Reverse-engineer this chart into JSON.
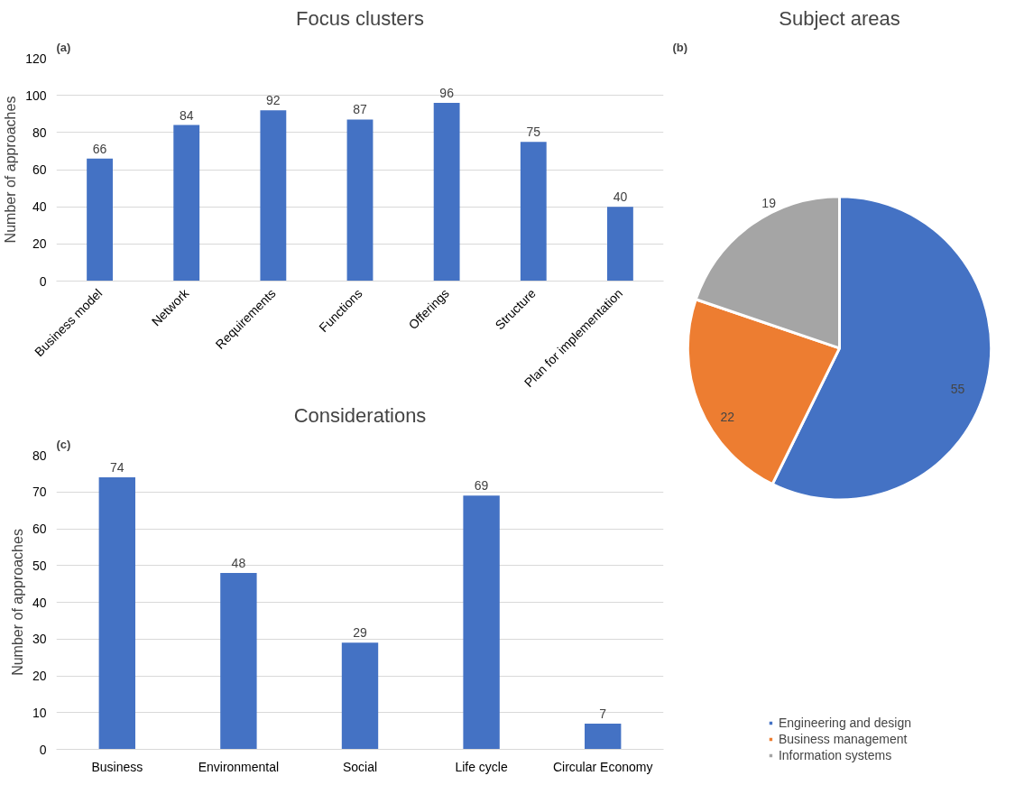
{
  "chart_data": [
    {
      "type": "bar",
      "title": "Focus clusters",
      "ylabel": "Number of approaches",
      "annotations": [
        "(a)"
      ],
      "categories": [
        "Business model",
        "Network",
        "Requirements",
        "Functions",
        "Offerings",
        "Structure",
        "Plan for implementation"
      ],
      "values": [
        66,
        84,
        92,
        87,
        96,
        75,
        40
      ],
      "color": "#4472c4",
      "ylim": [
        0,
        120
      ],
      "yticks": [
        0,
        20,
        40,
        60,
        80,
        100,
        120
      ],
      "grid": "y",
      "data_labels": true
    },
    {
      "type": "pie",
      "title": "Subject areas",
      "annotations": [
        "(b)"
      ],
      "categories": [
        "Engineering and design",
        "Business management",
        "Information systems"
      ],
      "values": [
        55,
        22,
        19
      ],
      "colors": [
        "#4472c4",
        "#ed7d31",
        "#a5a5a5"
      ],
      "legend": "bottom",
      "data_labels": true
    },
    {
      "type": "bar",
      "title": "Considerations",
      "ylabel": "Number of approaches",
      "annotations": [
        "(c)"
      ],
      "categories": [
        "Business",
        "Environmental",
        "Social",
        "Life cycle",
        "Circular Economy"
      ],
      "values": [
        74,
        48,
        29,
        69,
        7
      ],
      "color": "#4472c4",
      "ylim": [
        0,
        80
      ],
      "yticks": [
        0,
        10,
        20,
        30,
        40,
        50,
        60,
        70,
        80
      ],
      "grid": "y",
      "data_labels": true
    }
  ]
}
